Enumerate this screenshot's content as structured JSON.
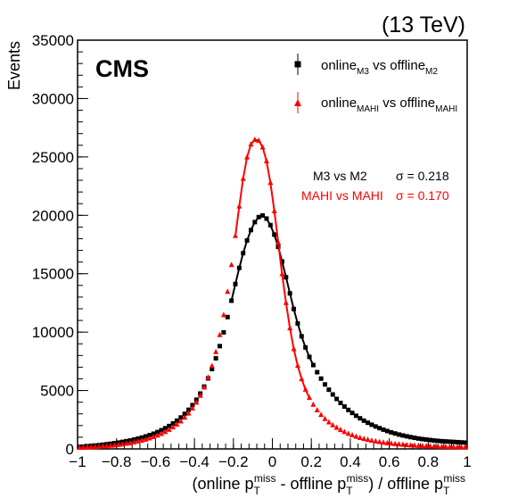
{
  "chart_data": {
    "type": "scatter",
    "title": "",
    "energy_label": "(13 TeV)",
    "experiment_label": "CMS",
    "ylabel": "Events",
    "xlabel": {
      "part1": "(online p",
      "sub1": "T",
      "sup1": "miss",
      "part2": " - offline p",
      "sub2": "T",
      "sup2": "miss",
      "part3": ") / offline p",
      "sub3": "T",
      "sup3": "miss"
    },
    "xlim": [
      -1,
      1
    ],
    "ylim": [
      0,
      35000
    ],
    "x_ticks": [
      -1,
      -0.8,
      -0.6,
      -0.4,
      -0.2,
      0,
      0.2,
      0.4,
      0.6,
      0.8,
      1
    ],
    "x_tick_labels": [
      "−1",
      "−0.8",
      "−0.6",
      "−0.4",
      "−0.2",
      "0",
      "0.2",
      "0.4",
      "0.6",
      "0.8",
      "1"
    ],
    "y_ticks": [
      0,
      5000,
      10000,
      15000,
      20000,
      25000,
      30000,
      35000
    ],
    "y_tick_labels": [
      "0",
      "5000",
      "10000",
      "15000",
      "20000",
      "25000",
      "30000",
      "35000"
    ],
    "grid": false,
    "legend_position": "top-right",
    "legend": [
      {
        "series": "m3",
        "main": "online",
        "sub1": "M3",
        "mid": " vs offline",
        "sub2": "M2"
      },
      {
        "series": "mahi",
        "main": "online",
        "sub1": "MAHI",
        "mid": " vs offline",
        "sub2": "MAHI"
      }
    ],
    "annotations": [
      {
        "series": "m3",
        "text": "M3 vs M2",
        "sigma": "σ = 0.218"
      },
      {
        "series": "mahi",
        "text": "MAHI vs MAHI",
        "sigma": "σ = 0.170"
      }
    ],
    "series": [
      {
        "key": "m3",
        "marker": "square",
        "color": "#000000",
        "bin_width": 0.02,
        "peak": 19950,
        "mean": -0.03,
        "x_range": [
          -1,
          1
        ],
        "values": [
          180,
          200,
          230,
          260,
          290,
          320,
          360,
          400,
          440,
          490,
          540,
          600,
          660,
          720,
          800,
          880,
          970,
          1070,
          1180,
          1300,
          1440,
          1600,
          1770,
          1960,
          2180,
          2420,
          2690,
          3000,
          3350,
          3750,
          4210,
          4740,
          5340,
          6040,
          6840,
          7760,
          8800,
          9980,
          11290,
          12690,
          14120,
          15500,
          16760,
          17850,
          18740,
          19420,
          19850,
          19990,
          19720,
          19160,
          18350,
          17300,
          16050,
          14700,
          13320,
          11980,
          10740,
          9640,
          8690,
          7880,
          7180,
          6570,
          6020,
          5520,
          5070,
          4660,
          4280,
          3940,
          3630,
          3340,
          3080,
          2840,
          2620,
          2420,
          2240,
          2070,
          1920,
          1780,
          1650,
          1530,
          1420,
          1320,
          1230,
          1150,
          1080,
          1010,
          950,
          890,
          840,
          800,
          760,
          720,
          690,
          660,
          640,
          620,
          600,
          580,
          560,
          540
        ],
        "fit_range": [
          -0.22,
          0.22
        ]
      },
      {
        "key": "mahi",
        "marker": "triangle",
        "color": "#ff0000",
        "bin_width": 0.02,
        "peak": 26500,
        "mean": -0.03,
        "x_range": [
          -1,
          1
        ],
        "values": [
          110,
          125,
          140,
          158,
          178,
          200,
          225,
          253,
          285,
          320,
          360,
          405,
          455,
          510,
          575,
          645,
          725,
          815,
          915,
          1030,
          1160,
          1300,
          1460,
          1650,
          1860,
          2100,
          2370,
          2690,
          3050,
          3480,
          3980,
          4570,
          5270,
          6110,
          7110,
          8310,
          9760,
          11470,
          13470,
          15760,
          18250,
          20780,
          23150,
          24980,
          26090,
          26480,
          26400,
          25830,
          24650,
          22790,
          20380,
          17670,
          14980,
          12510,
          10350,
          8560,
          7130,
          5990,
          5090,
          4380,
          3800,
          3320,
          2920,
          2580,
          2290,
          2040,
          1820,
          1630,
          1460,
          1310,
          1180,
          1060,
          960,
          870,
          790,
          720,
          660,
          600,
          550,
          510,
          470,
          430,
          400,
          370,
          345,
          320,
          300,
          280,
          265,
          250,
          236,
          224,
          212,
          202,
          193,
          185,
          177,
          170,
          164,
          158
        ],
        "fit_range": [
          -0.2,
          0.2
        ]
      }
    ]
  }
}
